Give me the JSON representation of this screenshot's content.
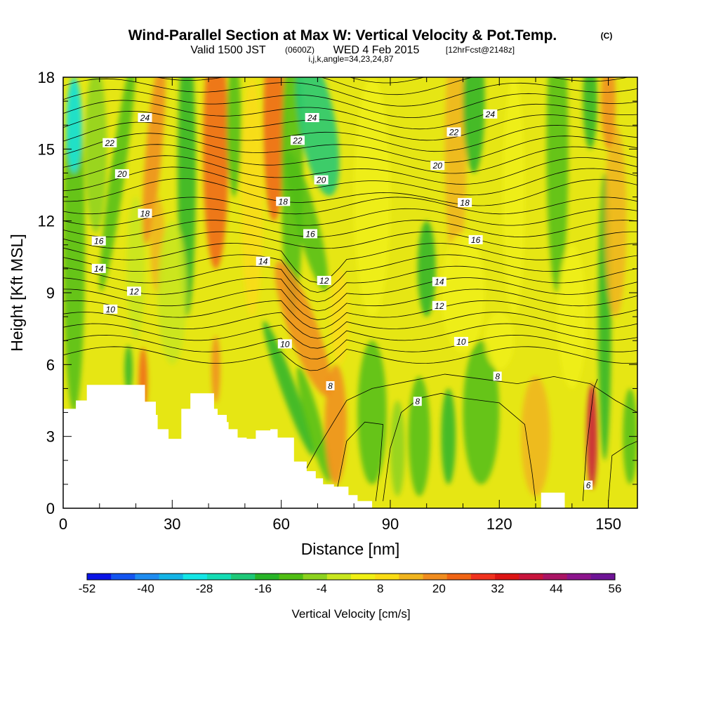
{
  "chart_data": {
    "type": "heatmap",
    "title": "Wind-Parallel Section at Max W: Vertical Velocity & Pot.Temp.",
    "title_mark": "(C)",
    "subtitle_parts": {
      "valid": "Valid 1500 JST",
      "utc": "(0600Z)",
      "date": "WED 4 Feb 2015",
      "forecast": "[12hrFcst@2148z]"
    },
    "index_line": "i,j,k,angle=34,23,24,87",
    "xlabel": "Distance [nm]",
    "ylabel": "Height [Kft MSL]",
    "xlim": [
      0,
      158
    ],
    "ylim": [
      0,
      18
    ],
    "x_ticks": [
      "0",
      "30",
      "60",
      "90",
      "120",
      "150"
    ],
    "y_ticks": [
      "0",
      "3",
      "6",
      "9",
      "12",
      "15",
      "18"
    ],
    "colorbar": {
      "label": "Vertical Velocity [cm/s]",
      "min": -52,
      "max": 56,
      "tick_labels": [
        "-52",
        "-40",
        "-28",
        "-16",
        "-4",
        "8",
        "20",
        "32",
        "44",
        "56"
      ],
      "colors": [
        "#0a14e6",
        "#1455f0",
        "#1e8cf0",
        "#14b4e6",
        "#14e6e6",
        "#14dcb4",
        "#1ec878",
        "#28b428",
        "#50be14",
        "#8cd21e",
        "#c8e61e",
        "#f0f014",
        "#fadc14",
        "#f0b41e",
        "#f08c1e",
        "#f06414",
        "#f0321e",
        "#dc1414",
        "#c8143c",
        "#aa1464",
        "#8c148c",
        "#6e1496"
      ]
    },
    "contour_labels": [
      {
        "text": "24",
        "x": 22.5,
        "y": 16.3
      },
      {
        "text": "22",
        "x": 12.8,
        "y": 15.25
      },
      {
        "text": "20",
        "x": 16.2,
        "y": 13.95
      },
      {
        "text": "18",
        "x": 22.5,
        "y": 12.3
      },
      {
        "text": "16",
        "x": 9.8,
        "y": 11.15
      },
      {
        "text": "14",
        "x": 9.8,
        "y": 10.0
      },
      {
        "text": "12",
        "x": 19.5,
        "y": 9.05
      },
      {
        "text": "10",
        "x": 13.0,
        "y": 8.3
      },
      {
        "text": "24",
        "x": 68.5,
        "y": 16.3
      },
      {
        "text": "22",
        "x": 64.5,
        "y": 15.35
      },
      {
        "text": "20",
        "x": 71.0,
        "y": 13.7
      },
      {
        "text": "18",
        "x": 60.5,
        "y": 12.8
      },
      {
        "text": "16",
        "x": 68.0,
        "y": 11.45
      },
      {
        "text": "14",
        "x": 55.0,
        "y": 10.3
      },
      {
        "text": "12",
        "x": 71.8,
        "y": 9.5
      },
      {
        "text": "10",
        "x": 61.0,
        "y": 6.85
      },
      {
        "text": "8",
        "x": 73.5,
        "y": 5.1
      },
      {
        "text": "8",
        "x": 97.5,
        "y": 4.45
      },
      {
        "text": "24",
        "x": 117.5,
        "y": 16.45
      },
      {
        "text": "22",
        "x": 107.5,
        "y": 15.7
      },
      {
        "text": "20",
        "x": 103.0,
        "y": 14.3
      },
      {
        "text": "18",
        "x": 110.5,
        "y": 12.75
      },
      {
        "text": "16",
        "x": 113.5,
        "y": 11.2
      },
      {
        "text": "14",
        "x": 103.5,
        "y": 9.45
      },
      {
        "text": "12",
        "x": 103.5,
        "y": 8.45
      },
      {
        "text": "10",
        "x": 109.5,
        "y": 6.95
      },
      {
        "text": "8",
        "x": 119.5,
        "y": 5.5
      },
      {
        "text": "6",
        "x": 144.5,
        "y": 0.95
      }
    ],
    "terrain_profile": {
      "x": [
        0,
        3.5,
        3.5,
        6.5,
        6.5,
        8.5,
        8.5,
        11.5,
        11.5,
        17,
        17,
        22.5,
        22.5,
        25.5,
        25.5,
        26,
        26,
        29,
        29,
        32.5,
        32.5,
        35,
        35,
        41.5,
        41.5,
        42.5,
        42.5,
        45,
        45,
        45.5,
        45.5,
        48,
        48,
        50.5,
        50.5,
        53,
        53,
        57,
        57,
        59,
        59,
        63.5,
        63.5,
        67,
        67,
        69.5,
        69.5,
        71.5,
        71.5,
        74.5,
        74.5,
        78.5,
        78.5,
        81,
        81,
        85,
        85,
        87.5,
        87.5,
        131.5,
        131.5,
        138,
        138,
        158
      ],
      "y": [
        4.15,
        4.15,
        4.5,
        4.5,
        5.15,
        5.15,
        5.15,
        5.15,
        5.15,
        5.15,
        5.15,
        5.15,
        4.45,
        4.45,
        3.9,
        3.9,
        3.3,
        3.3,
        2.9,
        2.9,
        4.15,
        4.15,
        4.8,
        4.8,
        4.15,
        4.15,
        3.9,
        3.9,
        3.6,
        3.6,
        3.3,
        3.3,
        2.95,
        2.95,
        2.9,
        2.9,
        3.25,
        3.25,
        3.3,
        3.3,
        2.95,
        2.95,
        1.95,
        1.95,
        1.55,
        1.55,
        1.25,
        1.25,
        1.0,
        1.0,
        0.9,
        0.9,
        0.55,
        0.55,
        0.3,
        0.3,
        0.0,
        0.0,
        0.0,
        0.0,
        0.65,
        0.65,
        0.0,
        0.0
      ]
    },
    "grid": false
  }
}
